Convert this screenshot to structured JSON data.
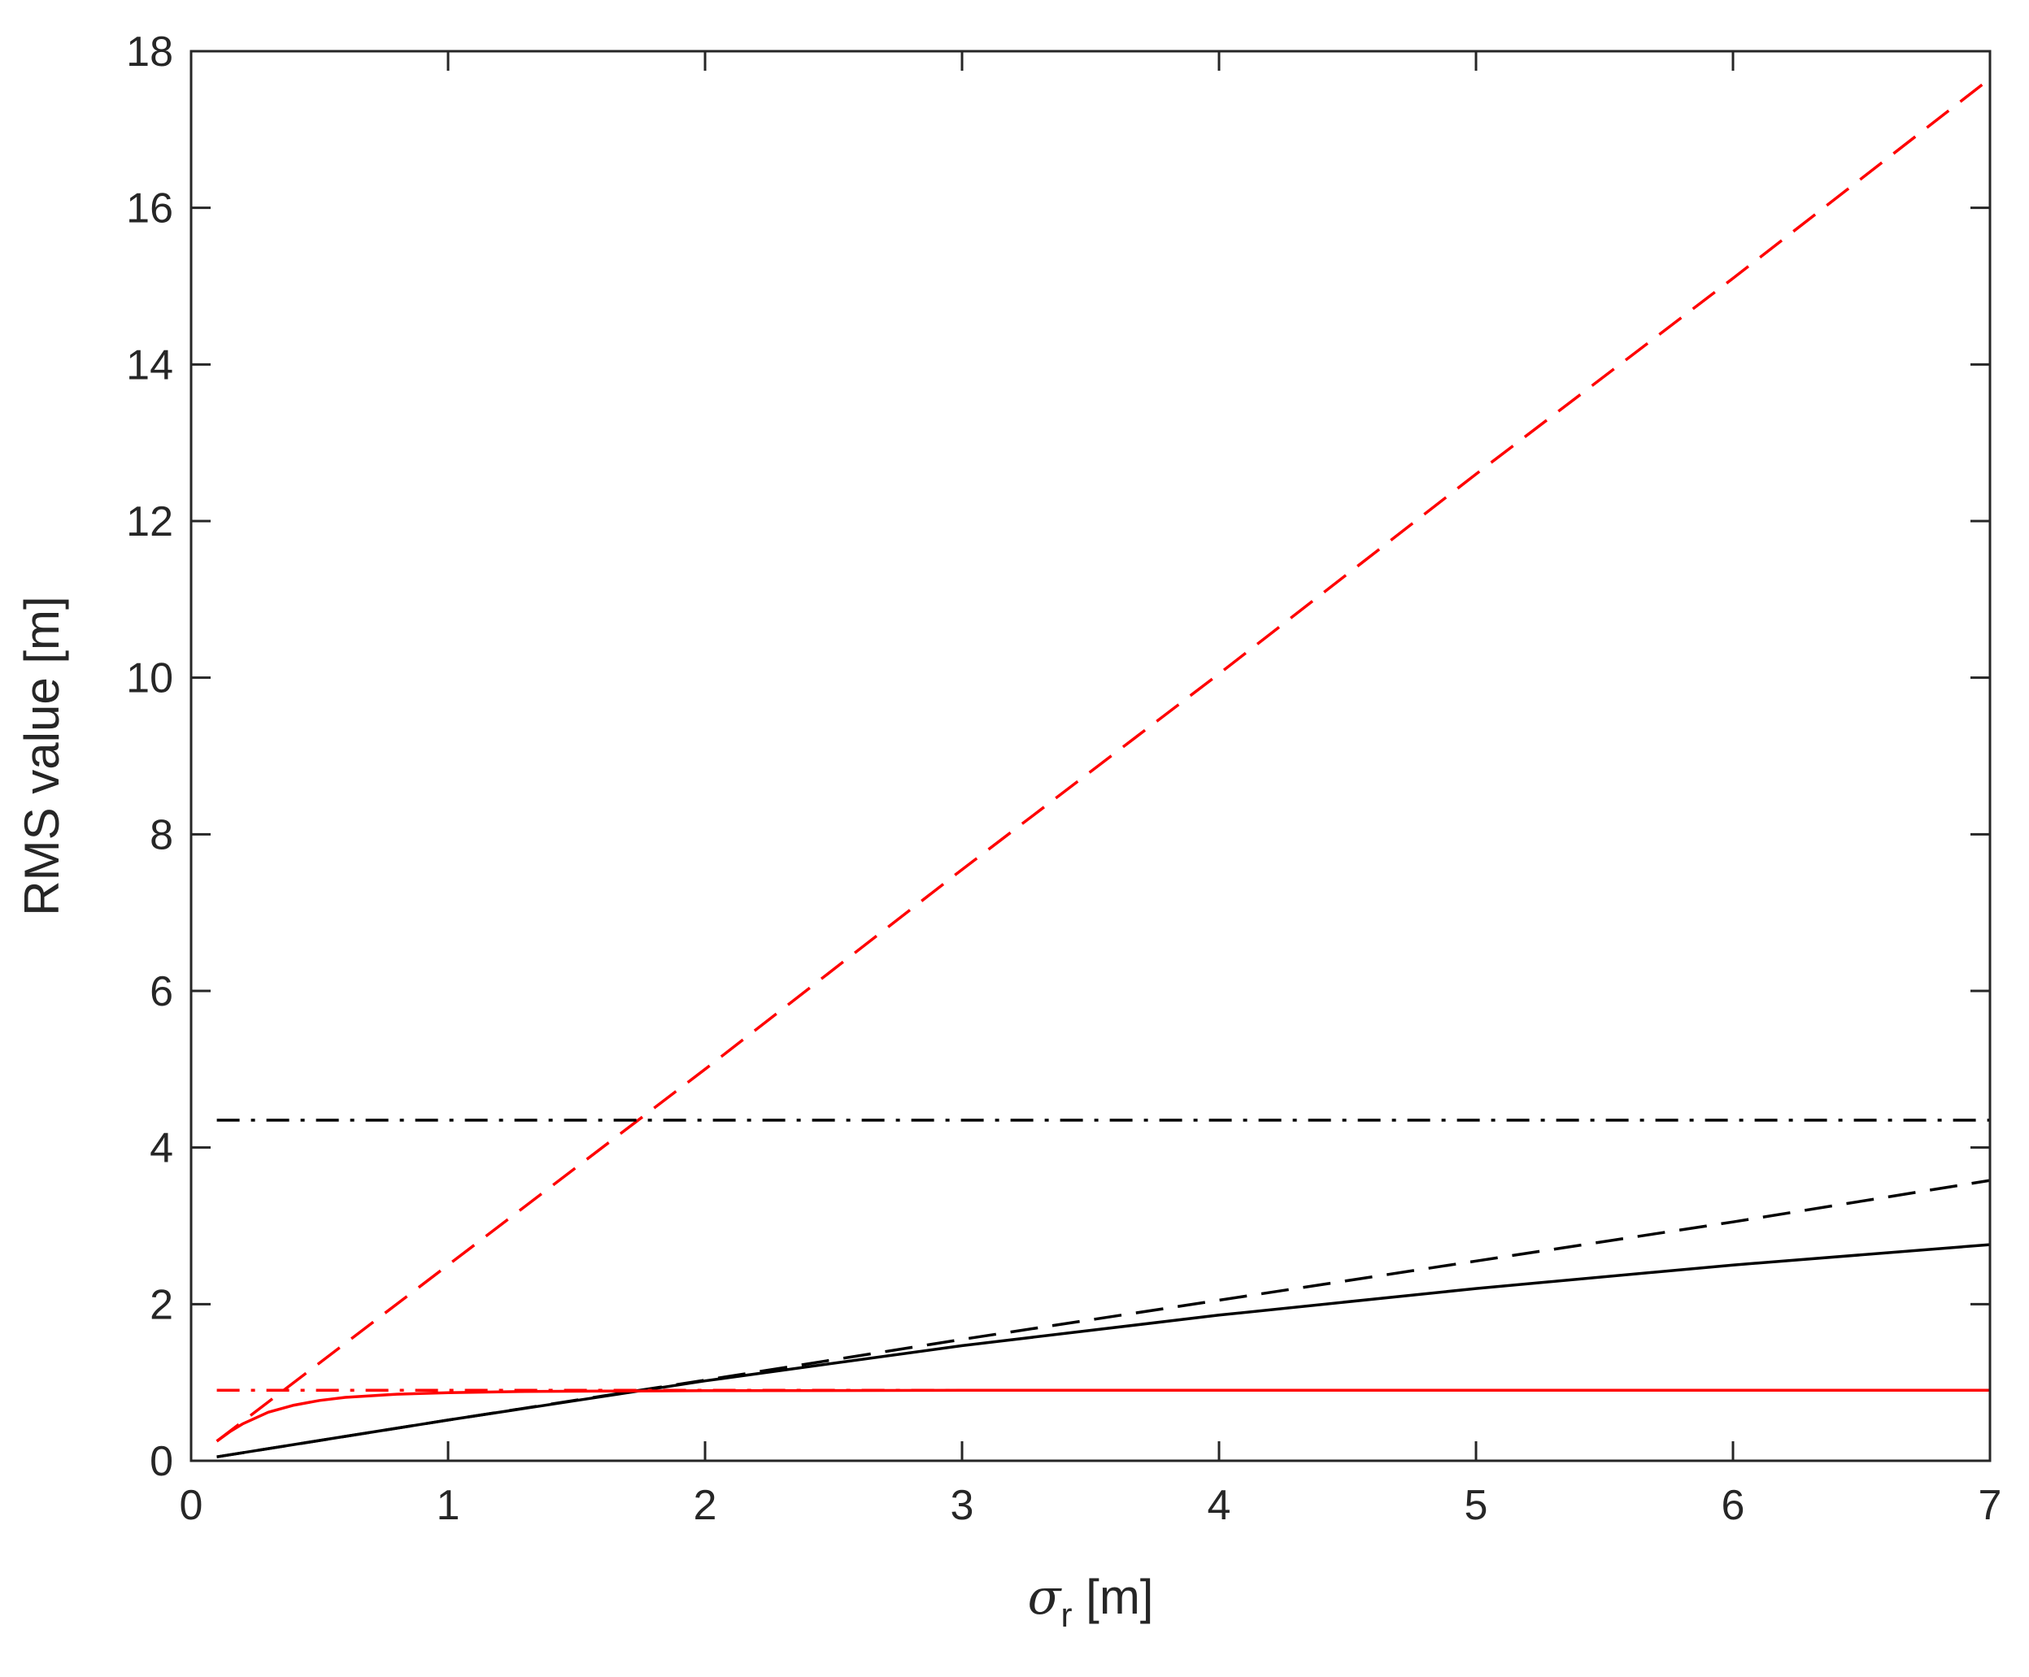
{
  "chart_data": {
    "type": "line",
    "title": "",
    "xlabel": {
      "symbol": "σ",
      "subscript": "r",
      "unit": " [m]"
    },
    "ylabel": "RMS value [m]",
    "xlim": [
      0,
      7
    ],
    "ylim": [
      0,
      18
    ],
    "xticks": [
      "0",
      "1",
      "2",
      "3",
      "4",
      "5",
      "6",
      "7"
    ],
    "yticks": [
      "0",
      "2",
      "4",
      "6",
      "8",
      "10",
      "12",
      "14",
      "16",
      "18"
    ],
    "grid": false,
    "legend": "none",
    "series": [
      {
        "color": "#ff0000",
        "style": "dashed",
        "x": [
          0.1,
          1,
          2,
          3,
          4,
          5,
          6,
          7
        ],
        "y": [
          0.25,
          2.5,
          5.0,
          7.55,
          10.05,
          12.6,
          15.1,
          17.65
        ]
      },
      {
        "color": "#000000",
        "style": "dashdot",
        "x": [
          0.1,
          7
        ],
        "y": [
          4.35,
          4.35
        ]
      },
      {
        "color": "#000000",
        "style": "dashed",
        "x": [
          0.1,
          1,
          2,
          3,
          4,
          5,
          6,
          7
        ],
        "y": [
          0.05,
          0.52,
          1.03,
          1.55,
          2.05,
          2.55,
          3.05,
          3.58
        ]
      },
      {
        "color": "#000000",
        "style": "solid",
        "x": [
          0.1,
          0.5,
          1,
          1.5,
          2,
          3,
          4,
          5,
          6,
          7
        ],
        "y": [
          0.05,
          0.26,
          0.52,
          0.77,
          1.02,
          1.47,
          1.86,
          2.2,
          2.5,
          2.76
        ]
      },
      {
        "color": "#ff0000",
        "style": "dashdot",
        "x": [
          0.1,
          7
        ],
        "y": [
          0.9,
          0.9
        ]
      },
      {
        "color": "#ff0000",
        "style": "solid",
        "x": [
          0.1,
          0.15,
          0.2,
          0.3,
          0.4,
          0.5,
          0.6,
          0.8,
          1.0,
          1.3,
          1.6,
          2,
          3,
          4,
          5,
          6,
          7
        ],
        "y": [
          0.25,
          0.37,
          0.47,
          0.62,
          0.71,
          0.77,
          0.81,
          0.85,
          0.87,
          0.885,
          0.89,
          0.895,
          0.9,
          0.9,
          0.9,
          0.9,
          0.9
        ]
      }
    ]
  }
}
